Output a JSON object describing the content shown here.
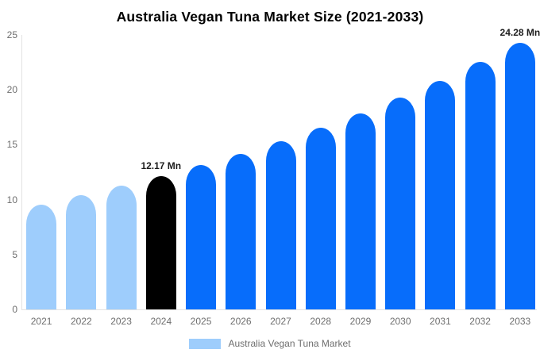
{
  "chart_data": {
    "type": "bar",
    "title": "Australia Vegan Tuna Market Size (2021-2033)",
    "categories": [
      "2021",
      "2022",
      "2023",
      "2024",
      "2025",
      "2026",
      "2027",
      "2028",
      "2029",
      "2030",
      "2031",
      "2032",
      "2033"
    ],
    "values": [
      9.57,
      10.43,
      11.27,
      12.17,
      13.14,
      14.19,
      15.33,
      16.55,
      17.87,
      19.3,
      20.84,
      22.51,
      24.28
    ],
    "color_roles": [
      "past",
      "past",
      "past",
      "highlight",
      "forecast",
      "forecast",
      "forecast",
      "forecast",
      "forecast",
      "forecast",
      "forecast",
      "forecast",
      "forecast"
    ],
    "bar_colors": {
      "past": "#9ecdfc",
      "highlight": "#000000",
      "forecast": "#076dfb"
    },
    "xlabel": "",
    "ylabel": "",
    "ylim": [
      0,
      25
    ],
    "yticks": [
      0,
      5,
      10,
      15,
      20,
      25
    ],
    "grid": false,
    "annotations": [
      {
        "index": 3,
        "text": "12.17 Mn"
      },
      {
        "index": 12,
        "text": "24.28 Mn"
      }
    ],
    "legend": [
      {
        "label": "Australia Vegan Tuna Market",
        "color": "#9ecdfc"
      }
    ],
    "legend_position": "bottom"
  }
}
